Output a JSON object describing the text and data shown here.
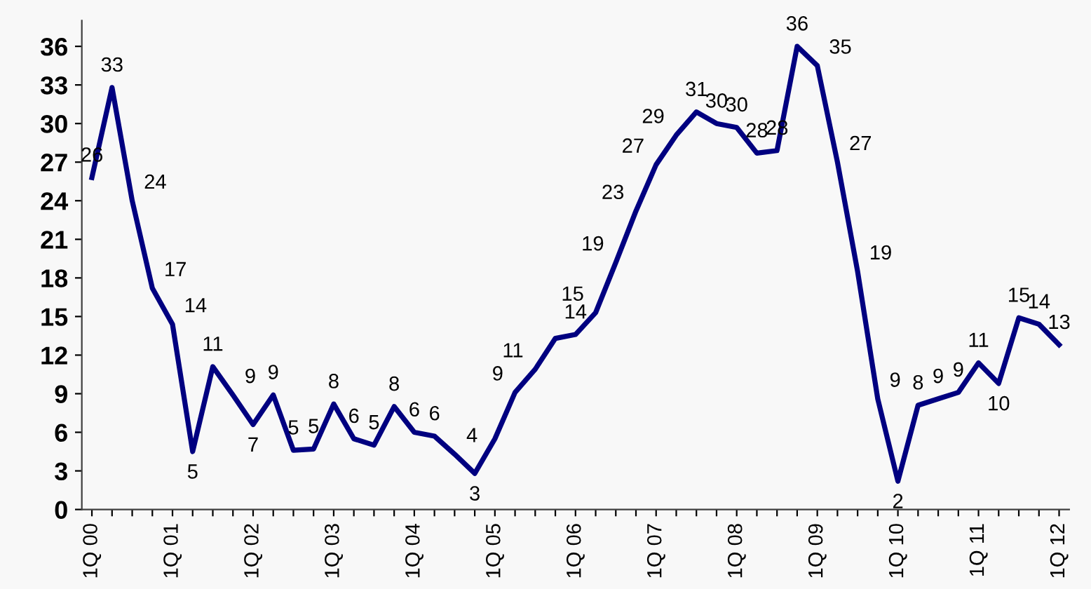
{
  "chart_data": {
    "type": "line",
    "categories": [
      "1Q 00",
      null,
      null,
      null,
      "1Q 01",
      null,
      null,
      null,
      "1Q 02",
      null,
      null,
      null,
      "1Q 03",
      null,
      null,
      null,
      "1Q 04",
      null,
      null,
      null,
      "1Q 05",
      null,
      null,
      null,
      "1Q 06",
      null,
      null,
      null,
      "1Q 07",
      null,
      null,
      null,
      "1Q 08",
      null,
      null,
      null,
      "1Q 09",
      null,
      null,
      null,
      "1Q 10",
      null,
      null,
      null,
      "1Q 11",
      null,
      null,
      null,
      "1Q 12"
    ],
    "series": [
      {
        "color": "#000080",
        "values": [
          25.8,
          32.8,
          24.0,
          17.2,
          14.4,
          4.5,
          11.1,
          8.9,
          6.6,
          8.9,
          4.6,
          4.7,
          8.2,
          5.5,
          5.0,
          8.0,
          6.0,
          5.7,
          4.3,
          2.8,
          5.5,
          9.1,
          10.9,
          13.3,
          13.6,
          15.3,
          19.2,
          23.2,
          26.8,
          29.1,
          30.9,
          30.0,
          29.7,
          27.7,
          27.9,
          36.0,
          34.5,
          27.0,
          18.5,
          8.6,
          2.2,
          8.1,
          8.6,
          9.1,
          11.4,
          9.8,
          14.9,
          14.4,
          12.8
        ],
        "value_labels": [
          "26",
          "33",
          "24",
          "17",
          "14",
          "5",
          "11",
          "9",
          "7",
          "9",
          "5",
          "5",
          "8",
          "6",
          "5",
          "8",
          "6",
          "6",
          "4",
          "3",
          null,
          "9",
          "11",
          null,
          "14",
          "15",
          "19",
          "23",
          "27",
          "29",
          "31",
          "30",
          "30",
          "28",
          "28",
          "36",
          "35",
          "27",
          "19",
          "9",
          "2",
          "8",
          "9",
          "9",
          "11",
          "10",
          "15",
          "14",
          "13"
        ]
      }
    ],
    "ylim": [
      0,
      38
    ],
    "yticks": [
      0,
      3,
      6,
      9,
      12,
      15,
      18,
      21,
      24,
      27,
      30,
      33,
      36
    ],
    "grid": false,
    "marker": "none",
    "line_style": "solid"
  }
}
